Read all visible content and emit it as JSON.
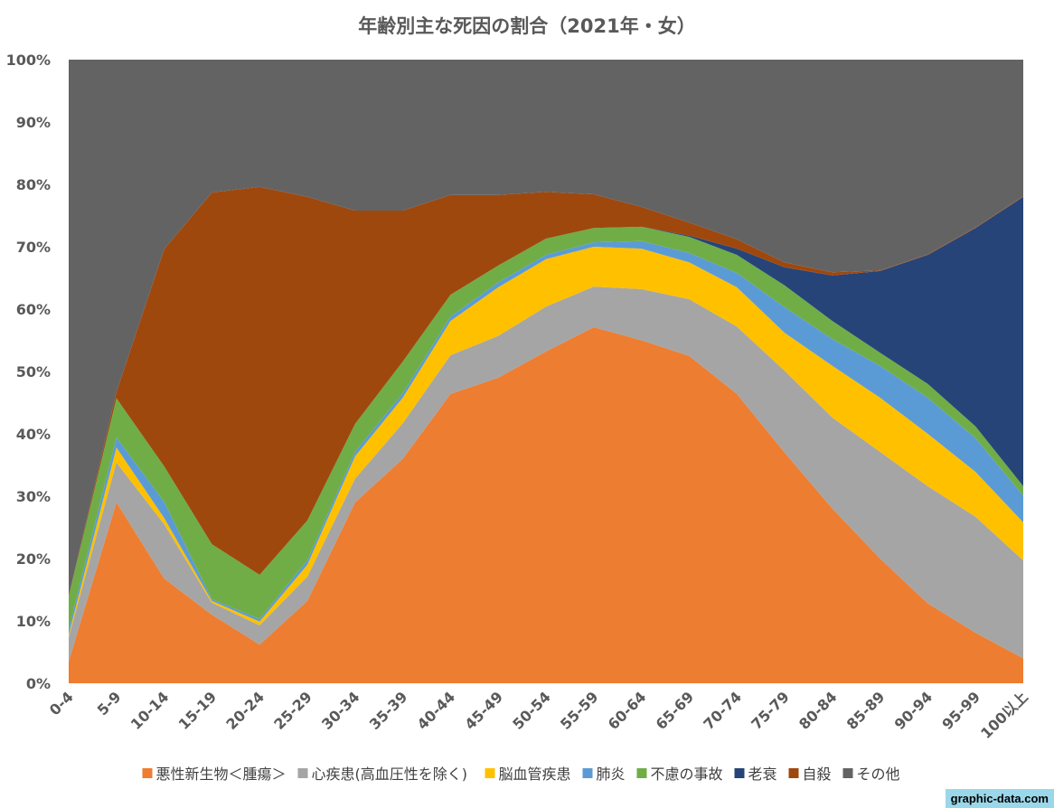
{
  "chart_data": {
    "type": "area",
    "stacked": true,
    "title": "年齢別主な死因の割合（2021年・女）",
    "xlabel": "",
    "ylabel": "",
    "ylim": [
      0,
      100
    ],
    "yticks": [
      "0%",
      "10%",
      "20%",
      "30%",
      "40%",
      "50%",
      "60%",
      "70%",
      "80%",
      "90%",
      "100%"
    ],
    "categories": [
      "0-4",
      "5-9",
      "10-14",
      "15-19",
      "20-24",
      "25-29",
      "30-34",
      "35-39",
      "40-44",
      "45-49",
      "50-54",
      "55-59",
      "60-64",
      "65-69",
      "70-74",
      "75-79",
      "80-84",
      "85-89",
      "90-94",
      "95-99",
      "100以上"
    ],
    "legend_position": "bottom",
    "series": [
      {
        "name": "悪性新生物＜腫瘍＞",
        "color": "#ED7D31",
        "values": [
          3.5,
          29,
          16.8,
          11,
          6.2,
          13.2,
          29,
          36,
          46.4,
          49,
          53.2,
          57.1,
          55,
          52.5,
          46.4,
          37,
          28,
          20,
          12.8,
          8.1,
          4
        ]
      },
      {
        "name": "心疾患(高血圧性を除く)",
        "color": "#A5A5A5",
        "values": [
          3.9,
          6.4,
          8.7,
          1.9,
          3.1,
          3.9,
          3.8,
          5.7,
          6.2,
          6.7,
          7.2,
          6.5,
          8.2,
          9.1,
          10.8,
          13.1,
          14.6,
          17.1,
          18.8,
          18.6,
          15.7
        ]
      },
      {
        "name": "脳血管疾患",
        "color": "#FFC000",
        "values": [
          0.4,
          2.4,
          1.0,
          0.3,
          0.6,
          1.9,
          3.6,
          4.1,
          5.5,
          7.8,
          7.6,
          6.4,
          6.5,
          5.9,
          6.3,
          6.1,
          8.3,
          8.7,
          8.4,
          7.2,
          6.1
        ]
      },
      {
        "name": "肺炎",
        "color": "#5B9BD5",
        "values": [
          0.9,
          1.6,
          2.6,
          0.3,
          0.4,
          0.7,
          0.7,
          0.7,
          0.7,
          0.8,
          0.7,
          0.7,
          1.2,
          1.5,
          2.3,
          4.1,
          4.3,
          5.1,
          5.8,
          5.4,
          4.3
        ]
      },
      {
        "name": "不慮の事故",
        "color": "#70AD47",
        "values": [
          5.2,
          6.3,
          5.7,
          8.8,
          7.1,
          6.4,
          4.5,
          5.1,
          3.5,
          2.7,
          2.6,
          2.3,
          2.3,
          2.6,
          2.9,
          3.5,
          2.9,
          2.1,
          2.2,
          1.9,
          1.5
        ]
      },
      {
        "name": "老衰",
        "color": "#264478",
        "values": [
          0,
          0,
          0,
          0,
          0,
          0,
          0,
          0,
          0,
          0,
          0,
          0,
          0,
          0.2,
          1.0,
          2.9,
          7.3,
          13.1,
          20.7,
          31.8,
          46.4
        ]
      },
      {
        "name": "自殺",
        "color": "#9E480E",
        "values": [
          0.1,
          1.0,
          34.8,
          56.4,
          62.2,
          51.9,
          34.2,
          24.2,
          16.0,
          11.3,
          7.5,
          5.4,
          3.2,
          2.1,
          1.5,
          0.8,
          0.5,
          0.1,
          0.1,
          0.1,
          0.1
        ]
      },
      {
        "name": "その他",
        "color": "#636363",
        "values": [
          86,
          53.3,
          30.4,
          21.3,
          20.4,
          22,
          24.2,
          24.2,
          21.7,
          21.7,
          21.2,
          21.6,
          23.6,
          26.1,
          28.8,
          32.5,
          34.1,
          33.8,
          31.2,
          26.9,
          21.9
        ]
      }
    ]
  },
  "watermark": "graphic-data.com"
}
